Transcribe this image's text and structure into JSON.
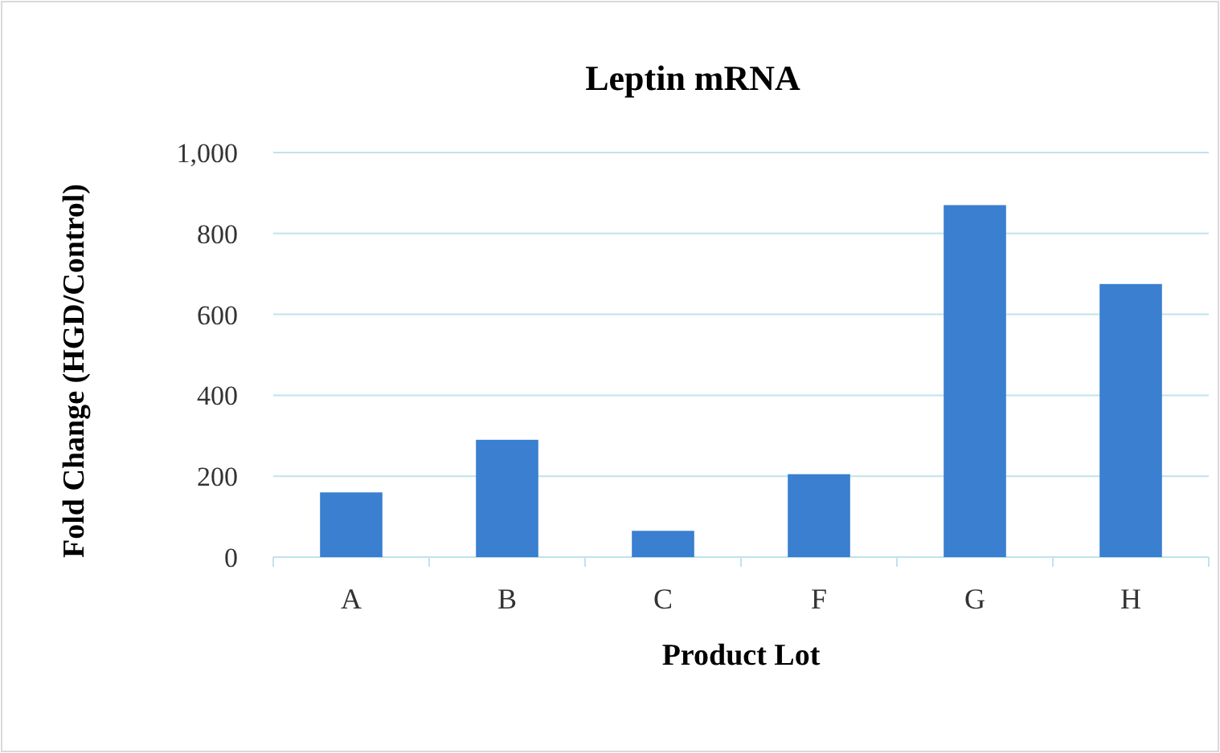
{
  "chart_data": {
    "type": "bar",
    "title": "Leptin mRNA",
    "xlabel": "Product Lot",
    "ylabel": "Fold Change (HGD/Control)",
    "categories": [
      "A",
      "B",
      "C",
      "F",
      "G",
      "H"
    ],
    "values": [
      160,
      290,
      65,
      205,
      870,
      675
    ],
    "color": "#3a7fd0",
    "ylim": [
      0,
      1000
    ],
    "yticks": [
      0,
      {
        "value": 200,
        "label": "200"
      },
      400,
      600,
      800,
      {
        "value": 1000,
        "label": "1,000"
      }
    ],
    "grid": "y"
  }
}
